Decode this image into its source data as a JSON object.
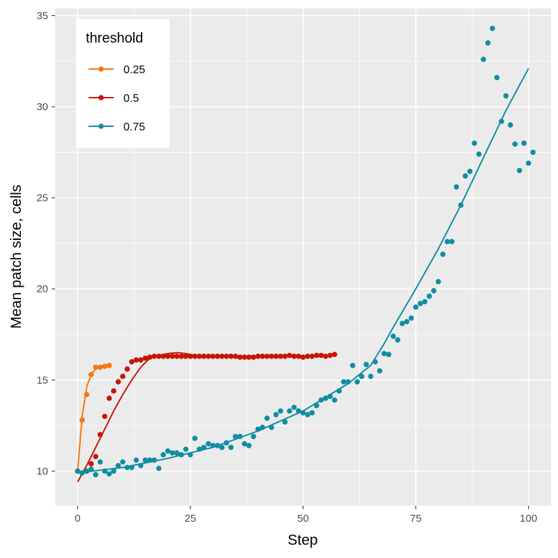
{
  "chart_data": {
    "type": "scatter",
    "xlabel": "Step",
    "ylabel": "Mean patch size, cells",
    "xlim": [
      -5,
      105
    ],
    "ylim": [
      8.1,
      35.4
    ],
    "x_ticks": [
      0,
      25,
      50,
      75,
      100
    ],
    "y_ticks": [
      10,
      15,
      20,
      25,
      30,
      35
    ],
    "grid": true,
    "legend": {
      "title": "threshold",
      "position": "top-left"
    },
    "series": [
      {
        "name": "0.25",
        "color": "#f8760d",
        "points": [
          [
            0,
            10.0
          ],
          [
            1,
            12.8
          ],
          [
            2,
            14.2
          ],
          [
            3,
            15.3
          ],
          [
            4,
            15.7
          ],
          [
            5,
            15.7
          ],
          [
            6,
            15.75
          ],
          [
            7,
            15.8
          ]
        ],
        "fit": [
          [
            0,
            10.0
          ],
          [
            1,
            13.0
          ],
          [
            2,
            14.6
          ],
          [
            3,
            15.3
          ],
          [
            4,
            15.6
          ],
          [
            5,
            15.7
          ],
          [
            6,
            15.75
          ],
          [
            7,
            15.8
          ]
        ]
      },
      {
        "name": "0.5",
        "color": "#c71604",
        "points": [
          [
            0,
            10.0
          ],
          [
            1,
            9.9
          ],
          [
            2,
            10.0
          ],
          [
            3,
            10.4
          ],
          [
            4,
            10.8
          ],
          [
            5,
            12.0
          ],
          [
            6,
            13.0
          ],
          [
            7,
            14.0
          ],
          [
            8,
            14.4
          ],
          [
            9,
            14.9
          ],
          [
            10,
            15.2
          ],
          [
            11,
            15.6
          ],
          [
            12,
            16.0
          ],
          [
            13,
            16.1
          ],
          [
            14,
            16.1
          ],
          [
            15,
            16.2
          ],
          [
            16,
            16.25
          ],
          [
            17,
            16.3
          ],
          [
            18,
            16.3
          ],
          [
            19,
            16.3
          ],
          [
            20,
            16.3
          ],
          [
            21,
            16.3
          ],
          [
            22,
            16.3
          ],
          [
            23,
            16.3
          ],
          [
            24,
            16.3
          ],
          [
            25,
            16.3
          ],
          [
            26,
            16.3
          ],
          [
            27,
            16.3
          ],
          [
            28,
            16.3
          ],
          [
            29,
            16.3
          ],
          [
            30,
            16.3
          ],
          [
            31,
            16.3
          ],
          [
            32,
            16.3
          ],
          [
            33,
            16.3
          ],
          [
            34,
            16.3
          ],
          [
            35,
            16.3
          ],
          [
            36,
            16.25
          ],
          [
            37,
            16.25
          ],
          [
            38,
            16.25
          ],
          [
            39,
            16.25
          ],
          [
            40,
            16.3
          ],
          [
            41,
            16.3
          ],
          [
            42,
            16.3
          ],
          [
            43,
            16.3
          ],
          [
            44,
            16.3
          ],
          [
            45,
            16.3
          ],
          [
            46,
            16.3
          ],
          [
            47,
            16.35
          ],
          [
            48,
            16.3
          ],
          [
            49,
            16.3
          ],
          [
            50,
            16.25
          ],
          [
            51,
            16.3
          ],
          [
            52,
            16.3
          ],
          [
            53,
            16.35
          ],
          [
            54,
            16.35
          ],
          [
            55,
            16.3
          ],
          [
            56,
            16.35
          ],
          [
            57,
            16.4
          ]
        ],
        "fit": [
          [
            0,
            9.4
          ],
          [
            2,
            10.3
          ],
          [
            4,
            11.3
          ],
          [
            6,
            12.3
          ],
          [
            8,
            13.3
          ],
          [
            10,
            14.2
          ],
          [
            12,
            15.0
          ],
          [
            14,
            15.7
          ],
          [
            16,
            16.2
          ],
          [
            18,
            16.35
          ],
          [
            20,
            16.45
          ],
          [
            22,
            16.5
          ],
          [
            24,
            16.45
          ],
          [
            26,
            16.35
          ],
          [
            30,
            16.3
          ],
          [
            35,
            16.3
          ],
          [
            40,
            16.3
          ],
          [
            45,
            16.3
          ],
          [
            50,
            16.3
          ],
          [
            55,
            16.35
          ],
          [
            57,
            16.35
          ]
        ]
      },
      {
        "name": "0.75",
        "color": "#0f8ea3",
        "points": [
          [
            0,
            10.0
          ],
          [
            1,
            9.9
          ],
          [
            2,
            10.0
          ],
          [
            3,
            10.1
          ],
          [
            4,
            9.8
          ],
          [
            5,
            10.5
          ],
          [
            6,
            10.0
          ],
          [
            7,
            9.85
          ],
          [
            8,
            10.0
          ],
          [
            9,
            10.3
          ],
          [
            10,
            10.5
          ],
          [
            11,
            10.2
          ],
          [
            12,
            10.2
          ],
          [
            13,
            10.6
          ],
          [
            14,
            10.3
          ],
          [
            15,
            10.6
          ],
          [
            16,
            10.6
          ],
          [
            17,
            10.6
          ],
          [
            18,
            10.15
          ],
          [
            19,
            10.9
          ],
          [
            20,
            11.1
          ],
          [
            21,
            11.0
          ],
          [
            22,
            11.0
          ],
          [
            23,
            10.9
          ],
          [
            24,
            11.2
          ],
          [
            25,
            10.9
          ],
          [
            26,
            11.8
          ],
          [
            27,
            11.2
          ],
          [
            28,
            11.3
          ],
          [
            29,
            11.5
          ],
          [
            30,
            11.4
          ],
          [
            31,
            11.4
          ],
          [
            32,
            11.3
          ],
          [
            33,
            11.55
          ],
          [
            34,
            11.3
          ],
          [
            35,
            11.9
          ],
          [
            36,
            11.9
          ],
          [
            37,
            11.5
          ],
          [
            38,
            11.4
          ],
          [
            39,
            11.9
          ],
          [
            40,
            12.3
          ],
          [
            41,
            12.4
          ],
          [
            42,
            12.9
          ],
          [
            43,
            12.4
          ],
          [
            44,
            13.1
          ],
          [
            45,
            13.3
          ],
          [
            46,
            12.7
          ],
          [
            47,
            13.3
          ],
          [
            48,
            13.5
          ],
          [
            49,
            13.3
          ],
          [
            50,
            13.2
          ],
          [
            51,
            13.1
          ],
          [
            52,
            13.2
          ],
          [
            53,
            13.6
          ],
          [
            54,
            13.9
          ],
          [
            55,
            14.0
          ],
          [
            56,
            14.1
          ],
          [
            57,
            13.9
          ],
          [
            58,
            14.4
          ],
          [
            59,
            14.9
          ],
          [
            60,
            14.9
          ],
          [
            61,
            15.8
          ],
          [
            62,
            14.9
          ],
          [
            63,
            15.2
          ],
          [
            64,
            15.85
          ],
          [
            65,
            15.2
          ],
          [
            66,
            16.0
          ],
          [
            67,
            15.5
          ],
          [
            68,
            16.45
          ],
          [
            69,
            16.4
          ],
          [
            70,
            17.4
          ],
          [
            71,
            17.2
          ],
          [
            72,
            18.1
          ],
          [
            73,
            18.2
          ],
          [
            74,
            18.4
          ],
          [
            75,
            19.0
          ],
          [
            76,
            19.2
          ],
          [
            77,
            19.3
          ],
          [
            78,
            19.6
          ],
          [
            79,
            19.9
          ],
          [
            80,
            20.4
          ],
          [
            81,
            21.9
          ],
          [
            82,
            22.6
          ],
          [
            83,
            22.6
          ],
          [
            84,
            25.6
          ],
          [
            85,
            24.6
          ],
          [
            86,
            26.2
          ],
          [
            87,
            26.45
          ],
          [
            88,
            28.0
          ],
          [
            89,
            27.4
          ],
          [
            90,
            32.6
          ],
          [
            91,
            33.5
          ],
          [
            92,
            34.3
          ],
          [
            93,
            31.6
          ],
          [
            94,
            29.2
          ],
          [
            95,
            30.6
          ],
          [
            96,
            29.0
          ],
          [
            97,
            27.95
          ],
          [
            98,
            26.5
          ],
          [
            99,
            28.0
          ],
          [
            100,
            26.9
          ],
          [
            101,
            27.5
          ]
        ],
        "fit": [
          [
            0,
            9.9
          ],
          [
            10,
            10.2
          ],
          [
            20,
            10.7
          ],
          [
            30,
            11.3
          ],
          [
            40,
            12.2
          ],
          [
            50,
            13.3
          ],
          [
            60,
            14.8
          ],
          [
            65,
            15.8
          ],
          [
            68,
            17.0
          ],
          [
            70,
            17.9
          ],
          [
            75,
            20.0
          ],
          [
            80,
            22.2
          ],
          [
            85,
            24.6
          ],
          [
            90,
            27.2
          ],
          [
            95,
            29.8
          ],
          [
            100,
            32.1
          ]
        ]
      }
    ]
  }
}
